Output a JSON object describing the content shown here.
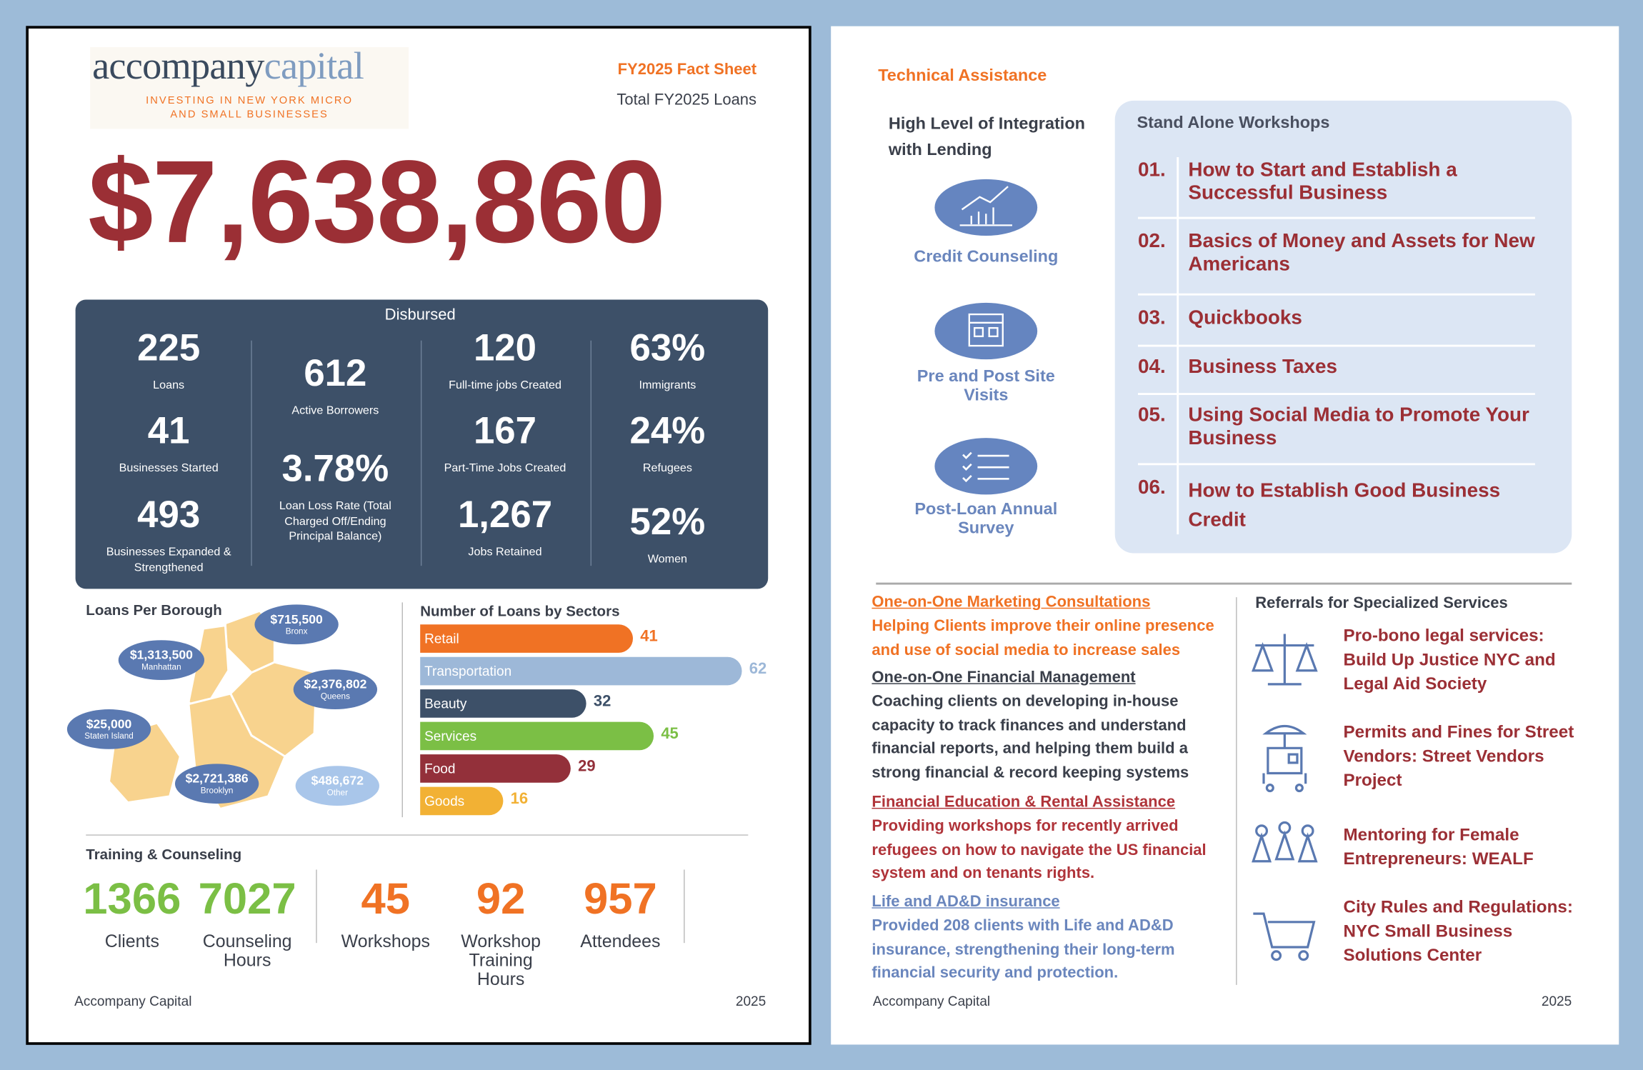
{
  "chart_data": {
    "type": "bar",
    "orientation": "horizontal",
    "title": "Number of Loans by Sectors",
    "categories": [
      "Retail",
      "Transportation",
      "Beauty",
      "Services",
      "Food",
      "Goods"
    ],
    "values": [
      41,
      62,
      32,
      45,
      29,
      16
    ],
    "colors": [
      "#f07224",
      "#9db8d8",
      "#3d5068",
      "#7bbf45",
      "#93303a",
      "#f2b134"
    ]
  },
  "header": {
    "logo_main": "accompany",
    "logo_accent": "capital",
    "tagline": "INVESTING IN NEW YORK MICRO AND SMALL BUSINESSES",
    "doc_title": "FY2025 Fact Sheet",
    "total_label": "Total FY2025 Loans",
    "total": "$7,638,860"
  },
  "disbursed": {
    "title": "Disbursed",
    "columns": [
      [
        {
          "value": "225",
          "label": "Loans"
        },
        {
          "value": "41",
          "label": "Businesses Started"
        },
        {
          "value": "493",
          "label": "Businesses Expanded & Strengthened"
        }
      ],
      [
        {
          "value": "612",
          "label": "Active Borrowers"
        },
        {
          "value": "3.78%",
          "label": "Loan Loss Rate (Total Charged Off/Ending Principal Balance)"
        }
      ],
      [
        {
          "value": "120",
          "label": "Full-time jobs Created"
        },
        {
          "value": "167",
          "label": "Part-Time Jobs Created"
        },
        {
          "value": "1,267",
          "label": "Jobs Retained"
        }
      ],
      [
        {
          "value": "63%",
          "label": "Immigrants"
        },
        {
          "value": "24%",
          "label": "Refugees"
        },
        {
          "value": "52%",
          "label": "Women"
        }
      ]
    ]
  },
  "boroughs": {
    "title": "Loans Per Borough",
    "items": [
      {
        "amount": "$715,500",
        "name": "Bronx"
      },
      {
        "amount": "$1,313,500",
        "name": "Manhattan"
      },
      {
        "amount": "$2,376,802",
        "name": "Queens"
      },
      {
        "amount": "$25,000",
        "name": "Staten Island"
      },
      {
        "amount": "$2,721,386",
        "name": "Brooklyn"
      },
      {
        "amount": "$486,672",
        "name": "Other"
      }
    ]
  },
  "training": {
    "title": "Training & Counseling",
    "stats": [
      {
        "value": "1366",
        "label": "Clients"
      },
      {
        "value": "7027",
        "label": "Counseling Hours"
      },
      {
        "value": "45",
        "label": "Workshops"
      },
      {
        "value": "92",
        "label": "Workshop Training Hours"
      },
      {
        "value": "957",
        "label": "Attendees"
      }
    ]
  },
  "technical_assistance": {
    "title": "Technical Assistance",
    "integration_title": "High Level of Integration with Lending",
    "integration_items": [
      "Credit Counseling",
      "Pre and Post Site Visits",
      "Post-Loan Annual Survey"
    ],
    "workshops_title": "Stand Alone Workshops",
    "workshops": [
      {
        "number": "01.",
        "title": "How to Start and Establish a Successful Business"
      },
      {
        "number": "02.",
        "title": "Basics of Money and Assets for New Americans"
      },
      {
        "number": "03.",
        "title": "Quickbooks"
      },
      {
        "number": "04.",
        "title": "Business Taxes"
      },
      {
        "number": "05.",
        "title": "Using Social Media to Promote Your Business"
      },
      {
        "number": "06.",
        "title": "How to Establish Good Business Credit"
      }
    ]
  },
  "services": [
    {
      "title": "One-on-One Marketing Consultations",
      "description": "Helping Clients improve their online presence and use of social media to increase sales"
    },
    {
      "title": "One-on-One Financial Management",
      "description": "Coaching clients on developing in-house capacity to track finances and understand financial reports, and helping them build a strong financial & record keeping systems"
    },
    {
      "title": "Financial Education & Rental Assistance",
      "description": "Providing workshops for recently arrived refugees on how to navigate the US financial system and on tenants rights."
    },
    {
      "title": "Life and AD&D insurance",
      "description": "Provided 208 clients with Life and AD&D insurance, strengthening their long-term financial security and protection."
    }
  ],
  "referrals": {
    "title": "Referrals for Specialized Services",
    "items": [
      "Pro-bono legal services: Build Up Justice NYC and Legal Aid Society",
      "Permits and Fines for Street Vendors: Street Vendors Project",
      "Mentoring for Female Entrepreneurs: WEALF",
      "City Rules and Regulations: NYC Small Business Solutions Center"
    ]
  },
  "footer": {
    "left_org": "Accompany Capital",
    "left_year": "2025",
    "right_org": "Accompany Capital",
    "right_year": "2025"
  }
}
